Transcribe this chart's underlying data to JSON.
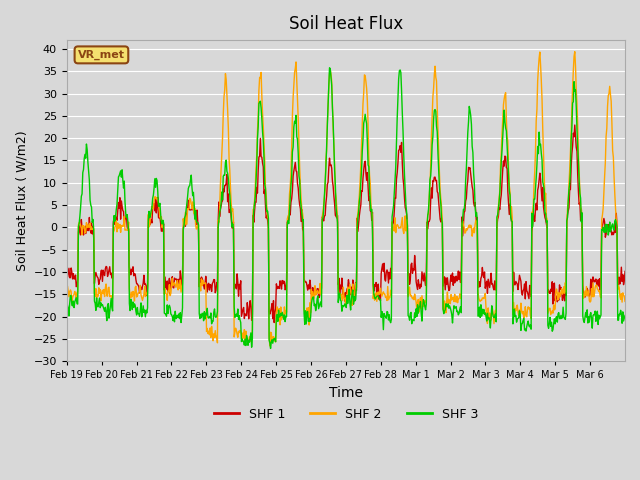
{
  "title": "Soil Heat Flux",
  "xlabel": "Time",
  "ylabel": "Soil Heat Flux ( W/m2)",
  "ylim": [
    -30,
    42
  ],
  "yticks": [
    -30,
    -25,
    -20,
    -15,
    -10,
    -5,
    0,
    5,
    10,
    15,
    20,
    25,
    30,
    35,
    40
  ],
  "colors": {
    "SHF 1": "#cc0000",
    "SHF 2": "#ffa500",
    "SHF 3": "#00cc00"
  },
  "legend_label": "VR_met",
  "plot_bg_color": "#d8d8d8",
  "n_days": 16,
  "date_labels": [
    "Feb 19",
    "Feb 20",
    "Feb 21",
    "Feb 22",
    "Feb 23",
    "Feb 24",
    "Feb 25",
    "Feb 26",
    "Feb 27",
    "Feb 28",
    "Mar 1",
    "Mar 2",
    "Mar 3",
    "Mar 4",
    "Mar 5",
    "Mar 6"
  ],
  "line_width": 1.0,
  "shf1_peaks": [
    0,
    5,
    5,
    5,
    10,
    18,
    13,
    14,
    14,
    19,
    12,
    13,
    15,
    10,
    22,
    0
  ],
  "shf2_peaks": [
    0,
    0,
    6,
    6,
    33,
    34,
    36,
    35,
    35,
    0,
    35,
    0,
    30,
    38,
    38,
    32
  ],
  "shf3_peaks": [
    18,
    13,
    10,
    10,
    14,
    29,
    24,
    35,
    25,
    35,
    27,
    26,
    25,
    20,
    32,
    0
  ],
  "shf1_nights": [
    -11,
    -10,
    -13,
    -12,
    -13,
    -19,
    -13,
    -14,
    -14,
    -10,
    -12,
    -11,
    -13,
    -14,
    -15,
    -12
  ],
  "shf2_nights": [
    -15,
    -15,
    -15,
    -13,
    -24,
    -25,
    -19,
    -15,
    -15,
    -15,
    -17,
    -16,
    -19,
    -19,
    -15,
    -15
  ],
  "shf3_nights": [
    -17,
    -18,
    -19,
    -20,
    -20,
    -25,
    -20,
    -17,
    -16,
    -20,
    -18,
    -19,
    -20,
    -22,
    -20,
    -20
  ]
}
